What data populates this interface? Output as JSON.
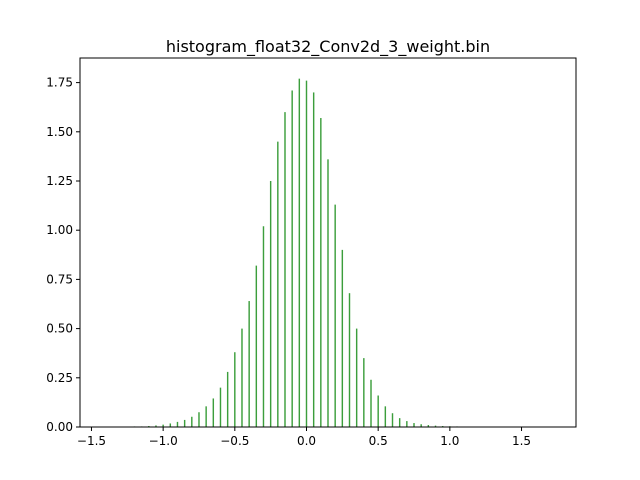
{
  "chart_data": {
    "type": "bar",
    "subtype": "histogram",
    "title": "histogram_float32_Conv2d_3_weight.bin",
    "xlabel": "",
    "ylabel": "",
    "xlim": [
      -1.58,
      1.88
    ],
    "ylim": [
      0,
      1.875
    ],
    "grid": false,
    "legend": "none",
    "bar_color": "#3c9e3c",
    "bin_width": 0.01,
    "x_tick_labels": [
      "−1.5",
      "−1.0",
      "−0.5",
      "0.0",
      "0.5",
      "1.0",
      "1.5"
    ],
    "x_tick_values": [
      -1.5,
      -1.0,
      -0.5,
      0.0,
      0.5,
      1.0,
      1.5
    ],
    "y_tick_labels": [
      "0.00",
      "0.25",
      "0.50",
      "0.75",
      "1.00",
      "1.25",
      "1.50",
      "1.75"
    ],
    "y_tick_values": [
      0.0,
      0.25,
      0.5,
      0.75,
      1.0,
      1.25,
      1.5,
      1.75
    ],
    "x": [
      -1.5,
      -1.45,
      -1.4,
      -1.35,
      -1.3,
      -1.25,
      -1.2,
      -1.15,
      -1.1,
      -1.05,
      -1.0,
      -0.95,
      -0.9,
      -0.85,
      -0.8,
      -0.75,
      -0.7,
      -0.65,
      -0.6,
      -0.55,
      -0.5,
      -0.45,
      -0.4,
      -0.35,
      -0.3,
      -0.25,
      -0.2,
      -0.15,
      -0.1,
      -0.05,
      0.0,
      0.05,
      0.1,
      0.15,
      0.2,
      0.25,
      0.3,
      0.35,
      0.4,
      0.45,
      0.5,
      0.55,
      0.6,
      0.65,
      0.7,
      0.75,
      0.8,
      0.85,
      0.9,
      0.95,
      1.0,
      1.05,
      1.1,
      1.15,
      1.2,
      1.25,
      1.3,
      1.35,
      1.4,
      1.45,
      1.5,
      1.55,
      1.6,
      1.65,
      1.7,
      1.75,
      1.8
    ],
    "values": [
      0,
      0,
      0,
      0,
      0,
      0,
      0.003,
      0.003,
      0.005,
      0.008,
      0.012,
      0.018,
      0.026,
      0.036,
      0.052,
      0.075,
      0.105,
      0.145,
      0.2,
      0.28,
      0.38,
      0.5,
      0.64,
      0.82,
      1.02,
      1.25,
      1.45,
      1.6,
      1.71,
      1.77,
      1.76,
      1.7,
      1.57,
      1.36,
      1.13,
      0.9,
      0.68,
      0.5,
      0.35,
      0.24,
      0.16,
      0.105,
      0.07,
      0.045,
      0.03,
      0.02,
      0.014,
      0.01,
      0.007,
      0.005,
      0.004,
      0.003,
      0.002,
      0.002,
      0.002,
      0.001,
      0.001,
      0.001,
      0.001,
      0.001,
      0.001,
      0.001,
      0.001,
      0.001,
      0.001,
      0,
      0
    ]
  }
}
